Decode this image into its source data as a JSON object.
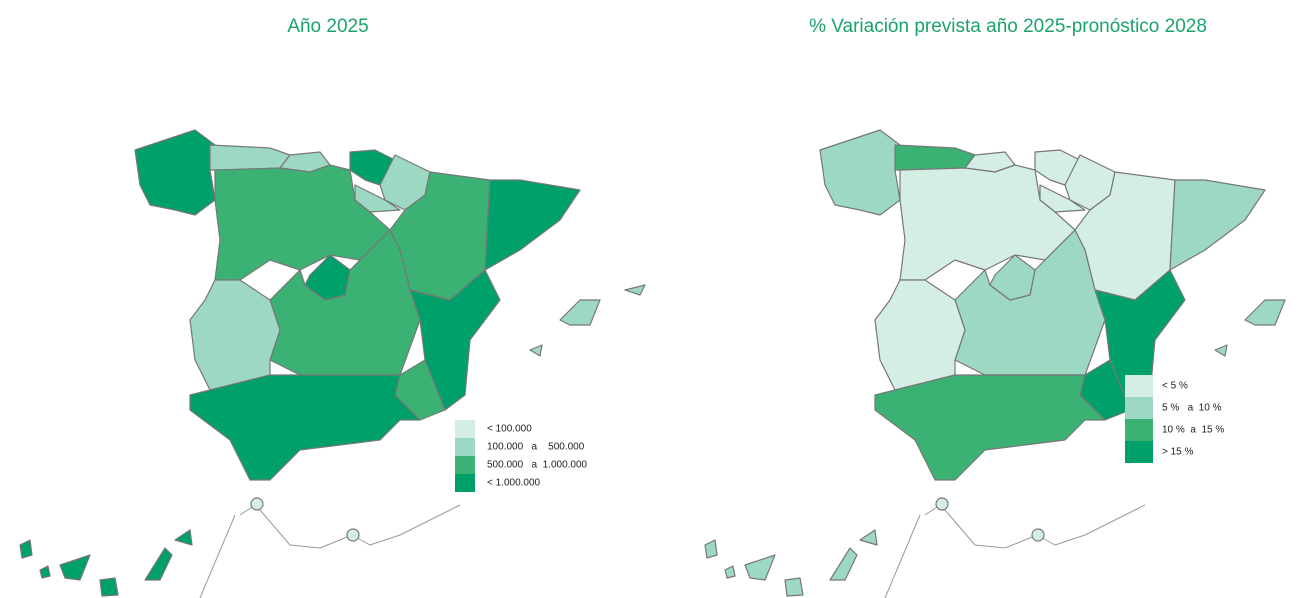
{
  "maps": [
    {
      "title": "Año 2025",
      "legend": [
        {
          "label": "< 100.000",
          "color": "#d4eee4"
        },
        {
          "label": "100.000   a    500.000",
          "color": "#9dd9c2"
        },
        {
          "label": "500.000   a  1.000.000",
          "color": "#3bb273"
        },
        {
          "label": "< 1.000.000",
          "color": "#00a06a"
        }
      ]
    },
    {
      "title": "% Variación prevista año 2025-pronóstico 2028",
      "legend": [
        {
          "label": "< 5 %",
          "color": "#d4eee4"
        },
        {
          "label": "5 %   a  10 %",
          "color": "#9dd9c2"
        },
        {
          "label": "10 %  a  15 %",
          "color": "#3bb273"
        },
        {
          "label": "> 15 %",
          "color": "#00a06a"
        }
      ]
    }
  ]
}
